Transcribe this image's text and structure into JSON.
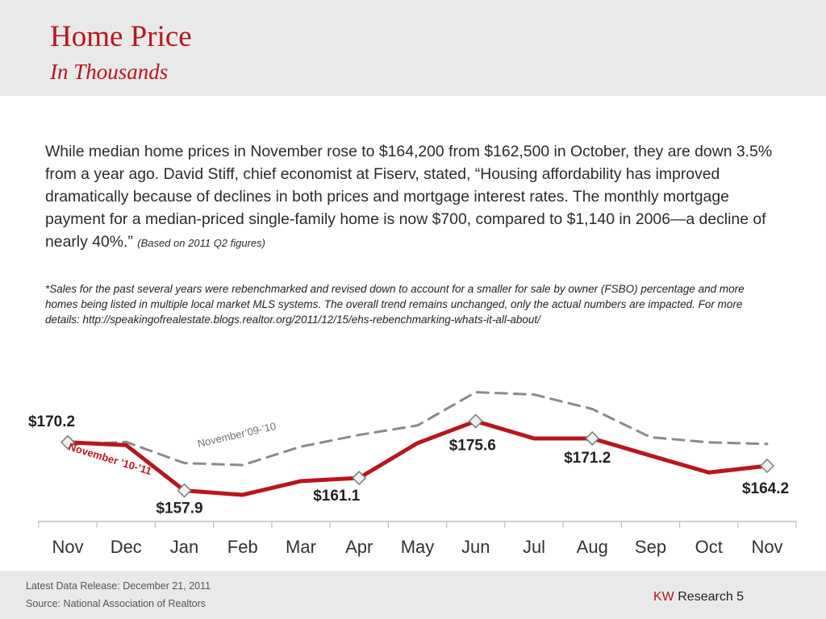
{
  "header": {
    "title": "Home Price",
    "subtitle": "In Thousands"
  },
  "body": {
    "paragraph": "While median home prices in November rose to $164,200 from $162,500 in October, they are down 3.5% from a year ago. David Stiff, chief economist at Fiserv, stated, “Housing affordability has improved dramatically because of declines in both prices and mortgage interest rates. The monthly mortgage payment for a median-priced single-family home is now $700, compared to $1,140 in 2006—a decline of nearly 40%.”",
    "note": "(Based on 2011 Q2 figures)",
    "footnote": "*Sales for the past several years were rebenchmarked and revised down to account for a smaller for sale by owner (FSBO) percentage and more homes being listed in multiple local market MLS systems.  The overall trend remains unchanged, only the actual numbers are impacted.  For more details: http://speakingofrealestate.blogs.realtor.org/2011/12/15/ehs-rebenchmarking-whats-it-all-about/"
  },
  "chart_data": {
    "type": "line",
    "categories": [
      "Nov",
      "Dec",
      "Jan",
      "Feb",
      "Mar",
      "Apr",
      "May",
      "Jun",
      "Jul",
      "Aug",
      "Sep",
      "Oct",
      "Nov"
    ],
    "series": [
      {
        "name": "November ’10-’11",
        "values": [
          170.2,
          169.5,
          157.9,
          156.8,
          160.3,
          161.1,
          170.0,
          175.6,
          171.2,
          171.2,
          166.8,
          162.5,
          164.2
        ],
        "color": "#b8161d",
        "style": "solid"
      },
      {
        "name": "November’09-’10",
        "values": [
          169.6,
          170.3,
          164.9,
          164.4,
          169.1,
          172.1,
          174.5,
          183.0,
          182.4,
          178.7,
          171.5,
          170.2,
          169.8
        ],
        "color": "#8a8a8a",
        "style": "dashed"
      }
    ],
    "markers": [
      0,
      2,
      5,
      7,
      9,
      12
    ],
    "data_labels": [
      {
        "index": 0,
        "text": "$170.2"
      },
      {
        "index": 2,
        "text": "$157.9"
      },
      {
        "index": 5,
        "text": "$161.1"
      },
      {
        "index": 7,
        "text": "$175.6"
      },
      {
        "index": 9,
        "text": "$171.2"
      },
      {
        "index": 12,
        "text": "$164.2"
      }
    ],
    "ylim": [
      150,
      186
    ],
    "grid": false
  },
  "footer": {
    "release": "Latest Data Release: December 21, 2011",
    "source": "Source: National Association of Realtors",
    "brand_kw": "KW",
    "brand_text": "Research 5"
  }
}
